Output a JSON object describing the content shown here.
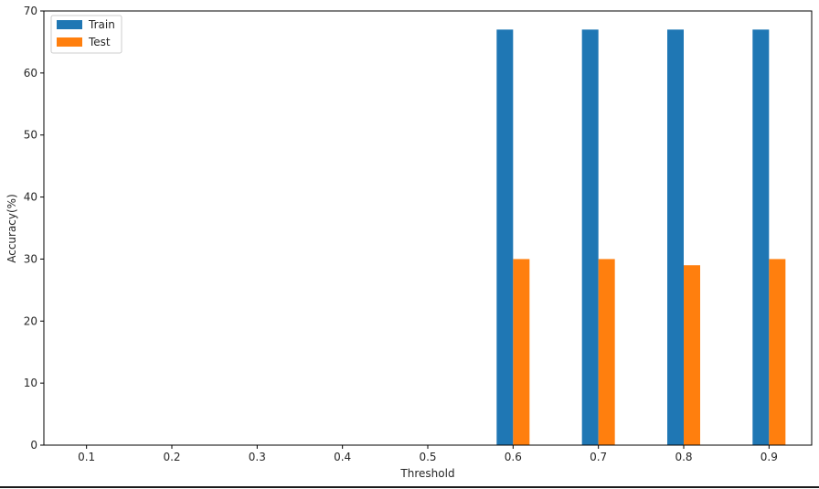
{
  "chart_data": {
    "type": "bar",
    "title": "",
    "xlabel": "Threshold",
    "ylabel": "Accuracy(%)",
    "categories": [
      "0.1",
      "0.2",
      "0.3",
      "0.4",
      "0.5",
      "0.6",
      "0.7",
      "0.8",
      "0.9"
    ],
    "ylim": [
      0,
      70
    ],
    "yticks": [
      "0",
      "10",
      "20",
      "30",
      "40",
      "50",
      "60",
      "70"
    ],
    "series": [
      {
        "name": "Train",
        "color": "#1f77b4",
        "values": [
          0,
          0,
          0,
          0,
          0,
          67,
          67,
          67,
          67
        ]
      },
      {
        "name": "Test",
        "color": "#ff7f0e",
        "values": [
          0,
          0,
          0,
          0,
          0,
          30,
          30,
          29,
          30
        ]
      }
    ],
    "legend": "top-left",
    "grid": false
  }
}
